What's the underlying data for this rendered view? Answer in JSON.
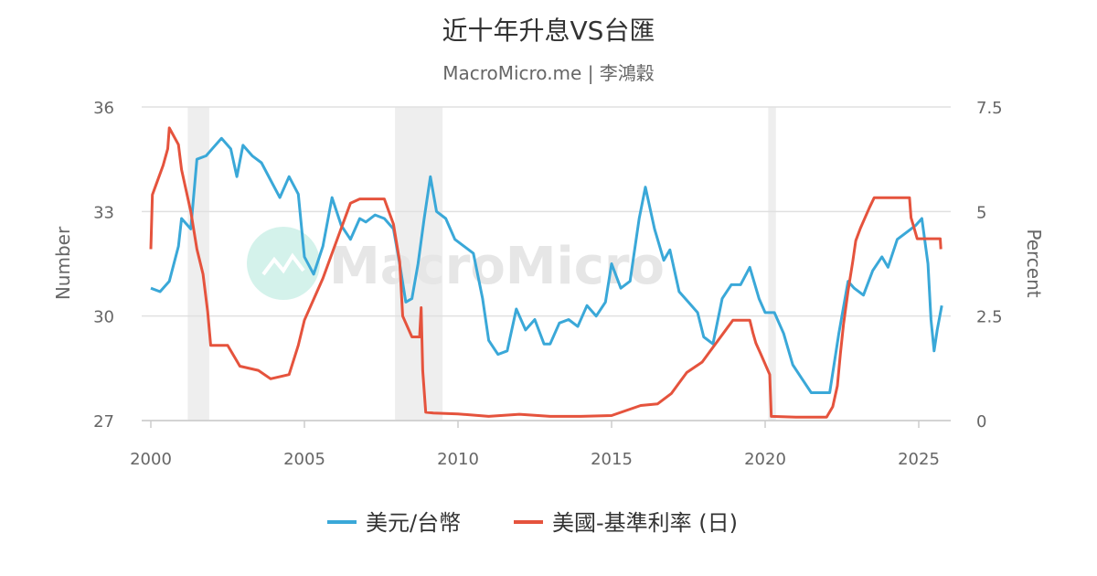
{
  "title": "近十年升息VS台匯",
  "subtitle": "MacroMicro.me | 李鴻穀",
  "watermark": "MacroMicro",
  "chart_data": {
    "type": "line",
    "x_range": [
      2000,
      2026
    ],
    "x_ticks": [
      "2000",
      "2005",
      "2010",
      "2015",
      "2020",
      "2025"
    ],
    "left_axis": {
      "label": "Number",
      "range": [
        27,
        36
      ],
      "ticks": [
        "27",
        "30",
        "33",
        "36"
      ]
    },
    "right_axis": {
      "label": "Percent",
      "range": [
        0,
        7.5
      ],
      "ticks": [
        "0",
        "2.5",
        "5",
        "7.5"
      ]
    },
    "recessions": [
      [
        2001.2,
        2001.9
      ],
      [
        2007.95,
        2009.5
      ],
      [
        2020.1,
        2020.35
      ]
    ],
    "grid": true,
    "legend_position": "bottom",
    "series": [
      {
        "name": "美元/台幣",
        "axis": "left",
        "color": "#3aa8d8",
        "points": [
          [
            2000.0,
            30.8
          ],
          [
            2000.3,
            30.7
          ],
          [
            2000.6,
            31.0
          ],
          [
            2000.9,
            32.0
          ],
          [
            2001.0,
            32.8
          ],
          [
            2001.3,
            32.5
          ],
          [
            2001.5,
            34.5
          ],
          [
            2001.8,
            34.6
          ],
          [
            2002.0,
            34.8
          ],
          [
            2002.3,
            35.1
          ],
          [
            2002.6,
            34.8
          ],
          [
            2002.8,
            34.0
          ],
          [
            2003.0,
            34.9
          ],
          [
            2003.3,
            34.6
          ],
          [
            2003.6,
            34.4
          ],
          [
            2003.9,
            33.9
          ],
          [
            2004.2,
            33.4
          ],
          [
            2004.5,
            34.0
          ],
          [
            2004.8,
            33.5
          ],
          [
            2005.0,
            31.7
          ],
          [
            2005.3,
            31.2
          ],
          [
            2005.6,
            32.0
          ],
          [
            2005.9,
            33.4
          ],
          [
            2006.2,
            32.6
          ],
          [
            2006.5,
            32.2
          ],
          [
            2006.8,
            32.8
          ],
          [
            2007.0,
            32.7
          ],
          [
            2007.3,
            32.9
          ],
          [
            2007.6,
            32.8
          ],
          [
            2007.9,
            32.5
          ],
          [
            2008.1,
            31.5
          ],
          [
            2008.3,
            30.4
          ],
          [
            2008.5,
            30.5
          ],
          [
            2008.7,
            31.5
          ],
          [
            2008.9,
            32.8
          ],
          [
            2009.1,
            34.0
          ],
          [
            2009.3,
            33.0
          ],
          [
            2009.6,
            32.8
          ],
          [
            2009.9,
            32.2
          ],
          [
            2010.2,
            32.0
          ],
          [
            2010.5,
            31.8
          ],
          [
            2010.8,
            30.5
          ],
          [
            2011.0,
            29.3
          ],
          [
            2011.3,
            28.9
          ],
          [
            2011.6,
            29.0
          ],
          [
            2011.9,
            30.2
          ],
          [
            2012.2,
            29.6
          ],
          [
            2012.5,
            29.9
          ],
          [
            2012.8,
            29.2
          ],
          [
            2013.0,
            29.2
          ],
          [
            2013.3,
            29.8
          ],
          [
            2013.6,
            29.9
          ],
          [
            2013.9,
            29.7
          ],
          [
            2014.2,
            30.3
          ],
          [
            2014.5,
            30.0
          ],
          [
            2014.8,
            30.4
          ],
          [
            2015.0,
            31.5
          ],
          [
            2015.3,
            30.8
          ],
          [
            2015.6,
            31.0
          ],
          [
            2015.9,
            32.8
          ],
          [
            2016.1,
            33.7
          ],
          [
            2016.4,
            32.5
          ],
          [
            2016.7,
            31.6
          ],
          [
            2016.9,
            31.9
          ],
          [
            2017.2,
            30.7
          ],
          [
            2017.5,
            30.4
          ],
          [
            2017.8,
            30.1
          ],
          [
            2018.0,
            29.4
          ],
          [
            2018.3,
            29.2
          ],
          [
            2018.6,
            30.5
          ],
          [
            2018.9,
            30.9
          ],
          [
            2019.2,
            30.9
          ],
          [
            2019.5,
            31.4
          ],
          [
            2019.8,
            30.5
          ],
          [
            2020.0,
            30.1
          ],
          [
            2020.3,
            30.1
          ],
          [
            2020.6,
            29.5
          ],
          [
            2020.9,
            28.6
          ],
          [
            2021.2,
            28.2
          ],
          [
            2021.5,
            27.8
          ],
          [
            2021.8,
            27.8
          ],
          [
            2022.1,
            27.8
          ],
          [
            2022.4,
            29.5
          ],
          [
            2022.7,
            31.0
          ],
          [
            2022.9,
            30.8
          ],
          [
            2023.2,
            30.6
          ],
          [
            2023.5,
            31.3
          ],
          [
            2023.8,
            31.7
          ],
          [
            2024.0,
            31.4
          ],
          [
            2024.3,
            32.2
          ],
          [
            2024.6,
            32.4
          ],
          [
            2024.9,
            32.6
          ],
          [
            2025.1,
            32.8
          ],
          [
            2025.3,
            31.5
          ],
          [
            2025.4,
            29.9
          ],
          [
            2025.5,
            29.0
          ],
          [
            2025.6,
            29.6
          ],
          [
            2025.75,
            30.3
          ]
        ]
      },
      {
        "name": "美國-基準利率 (日)",
        "axis": "right",
        "color": "#e5533d",
        "points": [
          [
            2000.0,
            4.1
          ],
          [
            2000.05,
            5.4
          ],
          [
            2000.2,
            5.7
          ],
          [
            2000.4,
            6.1
          ],
          [
            2000.55,
            6.5
          ],
          [
            2000.6,
            7.0
          ],
          [
            2000.9,
            6.6
          ],
          [
            2001.0,
            6.0
          ],
          [
            2001.3,
            5.0
          ],
          [
            2001.5,
            4.1
          ],
          [
            2001.7,
            3.5
          ],
          [
            2001.85,
            2.6
          ],
          [
            2001.95,
            1.8
          ],
          [
            2002.0,
            1.8
          ],
          [
            2002.5,
            1.8
          ],
          [
            2002.9,
            1.3
          ],
          [
            2003.5,
            1.2
          ],
          [
            2003.9,
            1.0
          ],
          [
            2004.5,
            1.1
          ],
          [
            2004.8,
            1.8
          ],
          [
            2005.0,
            2.4
          ],
          [
            2005.3,
            2.9
          ],
          [
            2005.6,
            3.4
          ],
          [
            2005.9,
            4.0
          ],
          [
            2006.2,
            4.6
          ],
          [
            2006.5,
            5.2
          ],
          [
            2006.8,
            5.3
          ],
          [
            2007.3,
            5.3
          ],
          [
            2007.6,
            5.3
          ],
          [
            2007.9,
            4.7
          ],
          [
            2008.1,
            3.8
          ],
          [
            2008.2,
            2.5
          ],
          [
            2008.5,
            2.0
          ],
          [
            2008.75,
            2.0
          ],
          [
            2008.8,
            2.7
          ],
          [
            2008.85,
            1.2
          ],
          [
            2008.95,
            0.2
          ],
          [
            2009.2,
            0.18
          ],
          [
            2010.0,
            0.16
          ],
          [
            2011.0,
            0.1
          ],
          [
            2012.0,
            0.15
          ],
          [
            2013.0,
            0.1
          ],
          [
            2014.0,
            0.1
          ],
          [
            2015.0,
            0.12
          ],
          [
            2015.95,
            0.36
          ],
          [
            2016.5,
            0.4
          ],
          [
            2016.95,
            0.65
          ],
          [
            2017.2,
            0.9
          ],
          [
            2017.45,
            1.15
          ],
          [
            2017.95,
            1.4
          ],
          [
            2018.2,
            1.65
          ],
          [
            2018.45,
            1.9
          ],
          [
            2018.7,
            2.15
          ],
          [
            2018.95,
            2.4
          ],
          [
            2019.5,
            2.4
          ],
          [
            2019.6,
            2.1
          ],
          [
            2019.7,
            1.85
          ],
          [
            2019.85,
            1.6
          ],
          [
            2020.15,
            1.1
          ],
          [
            2020.2,
            0.1
          ],
          [
            2021.0,
            0.08
          ],
          [
            2022.0,
            0.08
          ],
          [
            2022.2,
            0.33
          ],
          [
            2022.35,
            0.83
          ],
          [
            2022.45,
            1.6
          ],
          [
            2022.55,
            2.3
          ],
          [
            2022.7,
            3.1
          ],
          [
            2022.85,
            3.8
          ],
          [
            2022.95,
            4.3
          ],
          [
            2023.1,
            4.6
          ],
          [
            2023.25,
            4.85
          ],
          [
            2023.4,
            5.1
          ],
          [
            2023.55,
            5.33
          ],
          [
            2024.7,
            5.33
          ],
          [
            2024.75,
            4.85
          ],
          [
            2024.85,
            4.6
          ],
          [
            2024.95,
            4.35
          ],
          [
            2025.7,
            4.35
          ],
          [
            2025.72,
            4.1
          ]
        ]
      }
    ]
  }
}
